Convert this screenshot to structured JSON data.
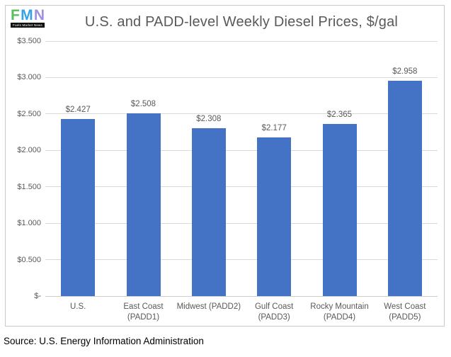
{
  "logo": {
    "letters": [
      {
        "char": "F",
        "color": "#5cbe5c"
      },
      {
        "char": "M",
        "color": "#35a2e3"
      },
      {
        "char": "N",
        "color": "#a18fdf"
      }
    ],
    "tagline": "Fuels Market News"
  },
  "source": "Source: U.S. Energy Information Administration",
  "colors": {
    "bar": "#4472C4",
    "gridline": "#D9D9D9",
    "axis_text": "#595959",
    "title_text": "#595959",
    "frame_border": "#C9C9C9",
    "source_text": "#000000"
  },
  "chart_data": {
    "type": "bar",
    "title": "U.S. and PADD-level Weekly Diesel Prices, $/gal",
    "categories": [
      "U.S.",
      "East Coast (PADD1)",
      "Midwest (PADD2)",
      "Gulf Coast (PADD3)",
      "Rocky Mountain (PADD4)",
      "West Coast (PADD5)"
    ],
    "category_lines": [
      [
        "U.S."
      ],
      [
        "East Coast",
        "(PADD1)"
      ],
      [
        "Midwest (PADD2)"
      ],
      [
        "Gulf Coast",
        "(PADD3)"
      ],
      [
        "Rocky Mountain",
        "(PADD4)"
      ],
      [
        "West Coast",
        "(PADD5)"
      ]
    ],
    "values": [
      2.427,
      2.508,
      2.308,
      2.177,
      2.365,
      2.958
    ],
    "data_labels": [
      "$2.427",
      "$2.508",
      "$2.308",
      "$2.177",
      "$2.365",
      "$2.958"
    ],
    "y_ticks": [
      {
        "value": 3.5,
        "label": "$3.500"
      },
      {
        "value": 3.0,
        "label": "$3.000"
      },
      {
        "value": 2.5,
        "label": "$2.500"
      },
      {
        "value": 2.0,
        "label": "$2.000"
      },
      {
        "value": 1.5,
        "label": "$1.500"
      },
      {
        "value": 1.0,
        "label": "$1.000"
      },
      {
        "value": 0.5,
        "label": "$0.500"
      },
      {
        "value": 0.0,
        "label": "$-"
      }
    ],
    "ylim": [
      0,
      3.5
    ],
    "xlabel": "",
    "ylabel": "",
    "grid": "horizontal",
    "legend": "none",
    "bar_color": "#4472C4"
  }
}
